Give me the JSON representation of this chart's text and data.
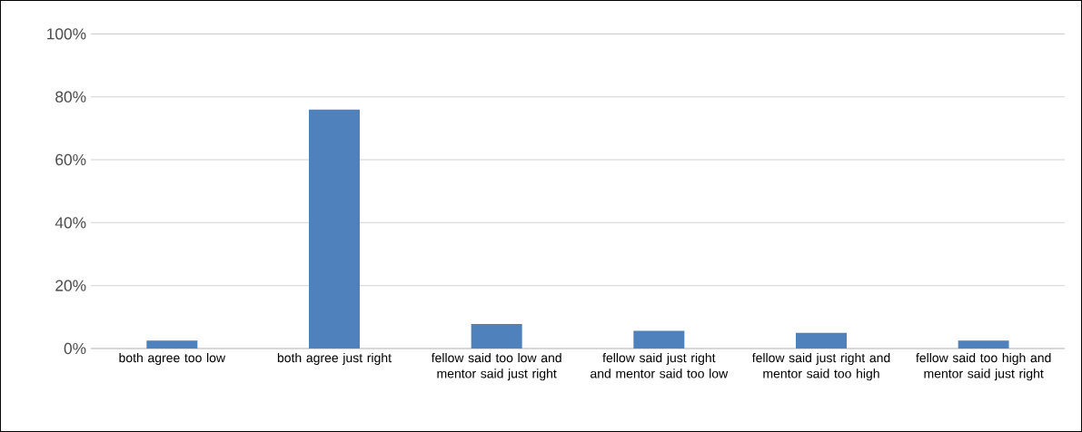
{
  "chart_data": {
    "type": "bar",
    "categories": [
      "both agree too low",
      "both agree just right",
      "fellow said too low and mentor said just right",
      "fellow said just right and mentor said too low",
      "fellow said just right and mentor said too high",
      "fellow said too high and mentor said just right"
    ],
    "values": [
      2.5,
      76,
      7.8,
      5.6,
      5.0,
      2.5
    ],
    "color": "#4f81bd",
    "ylim": [
      0,
      100
    ],
    "yticks": [
      {
        "value": 0,
        "label": "0%"
      },
      {
        "value": 20,
        "label": "20%"
      },
      {
        "value": 40,
        "label": "40%"
      },
      {
        "value": 60,
        "label": "60%"
      },
      {
        "value": 80,
        "label": "80%"
      },
      {
        "value": 100,
        "label": "100%"
      }
    ],
    "grid": "y"
  }
}
